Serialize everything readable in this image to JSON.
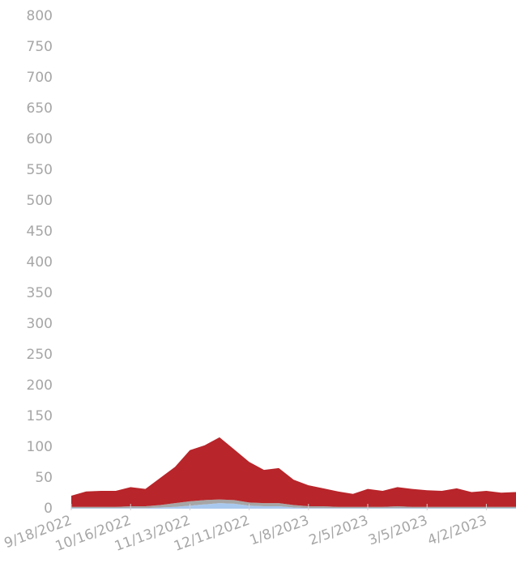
{
  "chart_data": {
    "type": "stacked-area",
    "categories": [
      "9/18/2022",
      null,
      null,
      null,
      "10/16/2022",
      null,
      null,
      null,
      "11/13/2022",
      null,
      null,
      null,
      "12/11/2022",
      null,
      null,
      null,
      "1/8/2023",
      null,
      null,
      null,
      "2/5/2023",
      null,
      null,
      null,
      "3/5/2023",
      null,
      null,
      null,
      "4/2/2023",
      null,
      null
    ],
    "series": [
      {
        "color": "#a9c8ee",
        "values": [
          1,
          1,
          1,
          1,
          1,
          1,
          2,
          3,
          5,
          7,
          9,
          8,
          5,
          4,
          4,
          2,
          1,
          1,
          1,
          1,
          1,
          1,
          1,
          1,
          1,
          1,
          1,
          1,
          1,
          1,
          1
        ]
      },
      {
        "color": "#a6a6a6",
        "values": [
          2,
          2,
          2,
          2,
          3,
          3,
          4,
          6,
          7,
          7,
          6,
          6,
          5,
          5,
          5,
          4,
          3,
          3,
          2,
          2,
          2,
          2,
          3,
          2,
          2,
          2,
          2,
          2,
          2,
          2,
          2
        ]
      },
      {
        "color": "#b8252a",
        "values": [
          18,
          25,
          26,
          26,
          31,
          28,
          44,
          59,
          83,
          89,
          101,
          82,
          66,
          54,
          57,
          41,
          34,
          29,
          25,
          21,
          29,
          26,
          31,
          29,
          27,
          26,
          30,
          24,
          26,
          23,
          24
        ]
      }
    ],
    "ylim": [
      0,
      800
    ],
    "yticks": [
      0,
      50,
      100,
      150,
      200,
      250,
      300,
      350,
      400,
      450,
      500,
      550,
      600,
      650,
      700,
      750,
      800
    ],
    "grid": false
  }
}
